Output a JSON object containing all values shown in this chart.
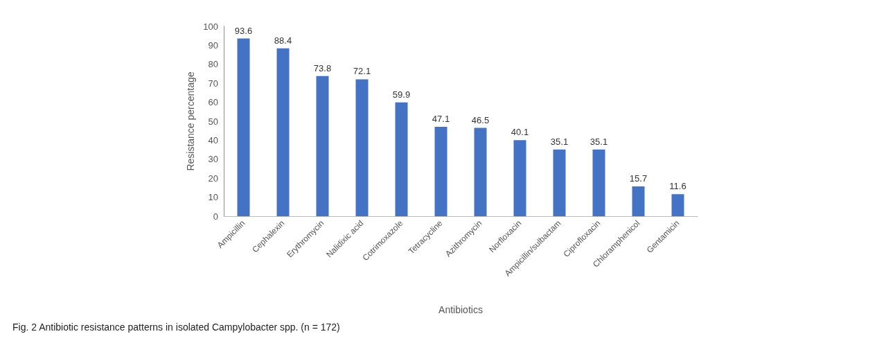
{
  "chart_data": {
    "type": "bar",
    "xlabel": "Antibiotics",
    "ylabel": "Resistance percentage",
    "categories": [
      "Ampicillin",
      "Cephalexin",
      "Erythromycin",
      "Nalidixic acid",
      "Cotrimoxazole",
      "Tetracycline",
      "Azithromycin",
      "Norfloxacin",
      "Ampicillin/sulbactam",
      "Ciprofloxacin",
      "Chloramphenicol",
      "Gentamicin"
    ],
    "values": [
      93.6,
      88.4,
      73.8,
      72.1,
      59.9,
      47.1,
      46.5,
      40.1,
      35.1,
      35.1,
      15.7,
      11.6
    ],
    "color": "#4472c4",
    "data_labels": true,
    "ylim": [
      0,
      100
    ],
    "yticks": [
      0,
      10,
      20,
      30,
      40,
      50,
      60,
      70,
      80,
      90,
      100
    ],
    "grid": false,
    "annotations": [
      "Fig. 2 Antibiotic resistance patterns in isolated Campylobacter spp. (n = 172)"
    ]
  }
}
